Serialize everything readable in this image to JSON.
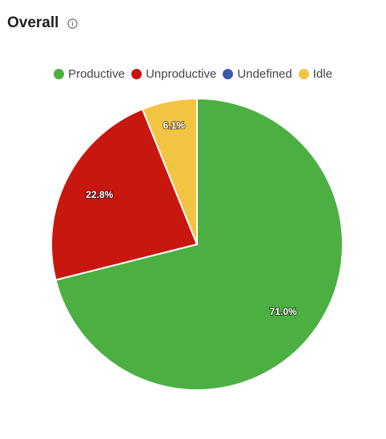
{
  "header": {
    "title": "Overall",
    "info_icon": "info-circle-icon"
  },
  "chart_data": {
    "type": "pie",
    "title": "",
    "legend_position": "top",
    "series": [
      {
        "name": "Productive",
        "value": 71.0,
        "label": "71.0%",
        "color": "#4caf42"
      },
      {
        "name": "Unproductive",
        "value": 22.8,
        "label": "22.8%",
        "color": "#c8170e"
      },
      {
        "name": "Undefined",
        "value": 0.0,
        "label": "",
        "color": "#3d5aa8"
      },
      {
        "name": "Idle",
        "value": 6.1,
        "label": "6.1%",
        "color": "#f3c342"
      }
    ]
  }
}
